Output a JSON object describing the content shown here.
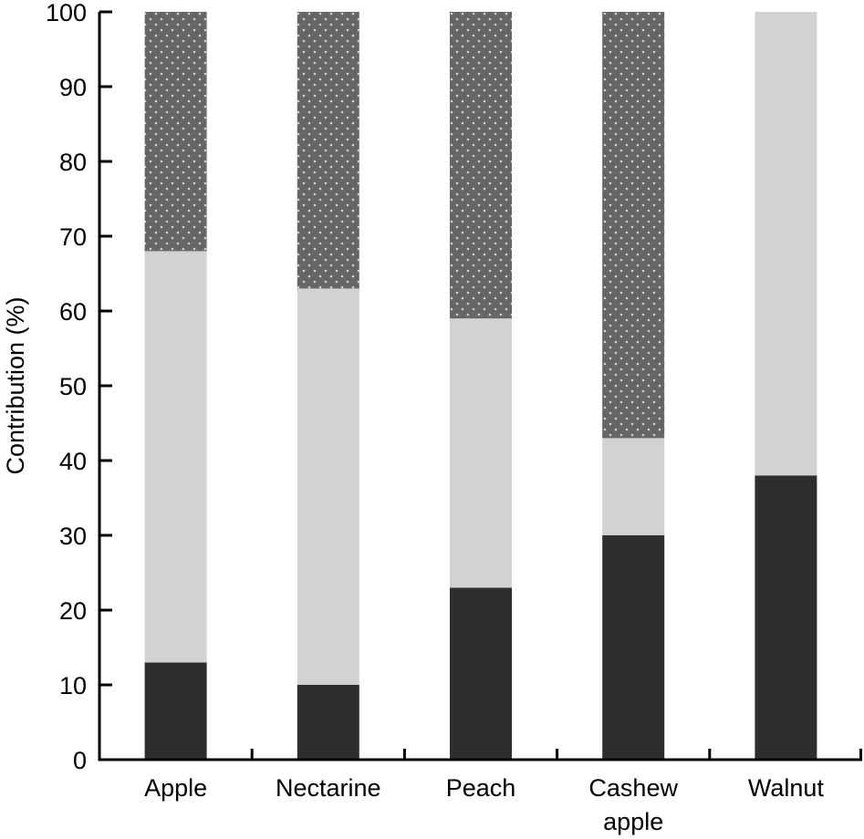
{
  "chart_data": {
    "type": "bar",
    "stacked": true,
    "title": "",
    "xlabel": "",
    "ylabel": "Contribution (%)",
    "ylim": [
      0,
      100
    ],
    "yticks": [
      0,
      10,
      20,
      30,
      40,
      50,
      60,
      70,
      80,
      90,
      100
    ],
    "grid": false,
    "legend": null,
    "categories": [
      "Apple",
      "Nectarine",
      "Peach",
      "Cashew apple",
      "Walnut"
    ],
    "category_label_lines": [
      [
        "Apple"
      ],
      [
        "Nectarine"
      ],
      [
        "Peach"
      ],
      [
        "Cashew",
        "apple"
      ],
      [
        "Walnut"
      ]
    ],
    "series": [
      {
        "name": "Series 1 (dark, bottom)",
        "color": "#2e2e2e",
        "pattern": "solid",
        "values": [
          13,
          10,
          23,
          30,
          38
        ]
      },
      {
        "name": "Series 2 (light grey, middle)",
        "color": "#d2d2d2",
        "pattern": "solid",
        "values": [
          55,
          53,
          36,
          13,
          62
        ]
      },
      {
        "name": "Series 3 (dotted, top)",
        "color": "#666666",
        "pattern": "dots",
        "values": [
          32,
          37,
          41,
          57,
          0
        ]
      }
    ],
    "cumulative_boundaries": [
      {
        "category": "Apple",
        "dark_top": 13,
        "light_top": 68,
        "dotted_top": 100
      },
      {
        "category": "Nectarine",
        "dark_top": 10,
        "light_top": 63,
        "dotted_top": 100
      },
      {
        "category": "Peach",
        "dark_top": 23,
        "light_top": 59,
        "dotted_top": 100
      },
      {
        "category": "Cashew apple",
        "dark_top": 30,
        "light_top": 43,
        "dotted_top": 100
      },
      {
        "category": "Walnut",
        "dark_top": 38,
        "light_top": 100,
        "dotted_top": 100
      }
    ]
  }
}
